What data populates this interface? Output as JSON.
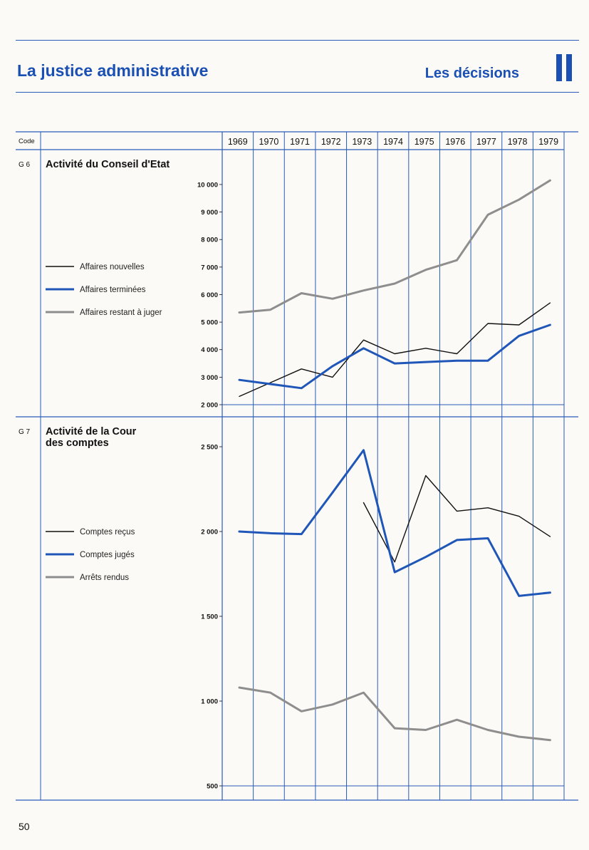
{
  "header": {
    "title": "La justice administrative",
    "section": "Les décisions",
    "section_mark": "II",
    "code_label": "Code"
  },
  "years": [
    "1969",
    "1970",
    "1971",
    "1972",
    "1973",
    "1974",
    "1975",
    "1976",
    "1977",
    "1978",
    "1979"
  ],
  "page_number": "50",
  "colors": {
    "accent": "#1a4fb4",
    "black": "#111111",
    "blue": "#1f56b8",
    "gray": "#8e8e8e"
  },
  "chart_data": [
    {
      "type": "line",
      "code": "G 6",
      "title": "Activité du Conseil d'Etat",
      "x": [
        "1969",
        "1970",
        "1971",
        "1972",
        "1973",
        "1974",
        "1975",
        "1976",
        "1977",
        "1978",
        "1979"
      ],
      "ylim": [
        2000,
        10400
      ],
      "yticks": [
        2000,
        3000,
        4000,
        5000,
        6000,
        7000,
        8000,
        9000,
        10000
      ],
      "ytick_labels": [
        "2 000",
        "3 000",
        "4 000",
        "5 000",
        "6 000",
        "7 000",
        "8 000",
        "9 000",
        "10 000"
      ],
      "series": [
        {
          "name": "Affaires nouvelles",
          "color": "black",
          "values": [
            2300,
            2800,
            3300,
            3000,
            4350,
            3850,
            4050,
            3850,
            4950,
            4900,
            5700
          ]
        },
        {
          "name": "Affaires terminées",
          "color": "blue",
          "values": [
            2900,
            2750,
            2600,
            3400,
            4050,
            3500,
            3550,
            3600,
            3600,
            4500,
            4900
          ]
        },
        {
          "name": "Affaires restant à juger",
          "color": "gray",
          "values": [
            5350,
            5450,
            6050,
            5850,
            6150,
            6400,
            6900,
            7250,
            8900,
            9450,
            10150
          ]
        }
      ]
    },
    {
      "type": "line",
      "code": "G 7",
      "title_lines": [
        "Activité de la Cour",
        "des comptes"
      ],
      "x": [
        "1969",
        "1970",
        "1971",
        "1972",
        "1973",
        "1974",
        "1975",
        "1976",
        "1977",
        "1978",
        "1979"
      ],
      "ylim": [
        500,
        2500
      ],
      "yticks": [
        500,
        1000,
        1500,
        2000,
        2500
      ],
      "ytick_labels": [
        "500",
        "1 000",
        "1 500",
        "2 000",
        "2 500"
      ],
      "series": [
        {
          "name": "Comptes reçus",
          "color": "black",
          "values": [
            null,
            null,
            null,
            null,
            2170,
            1820,
            2330,
            2120,
            2140,
            2090,
            1970
          ]
        },
        {
          "name": "Comptes jugés",
          "color": "blue",
          "values": [
            2000,
            1990,
            1985,
            2230,
            2480,
            1760,
            1850,
            1950,
            1960,
            1620,
            1640
          ]
        },
        {
          "name": "Arrêts rendus",
          "color": "gray",
          "values": [
            1080,
            1050,
            940,
            980,
            1050,
            840,
            830,
            890,
            830,
            790,
            770
          ]
        }
      ]
    }
  ]
}
